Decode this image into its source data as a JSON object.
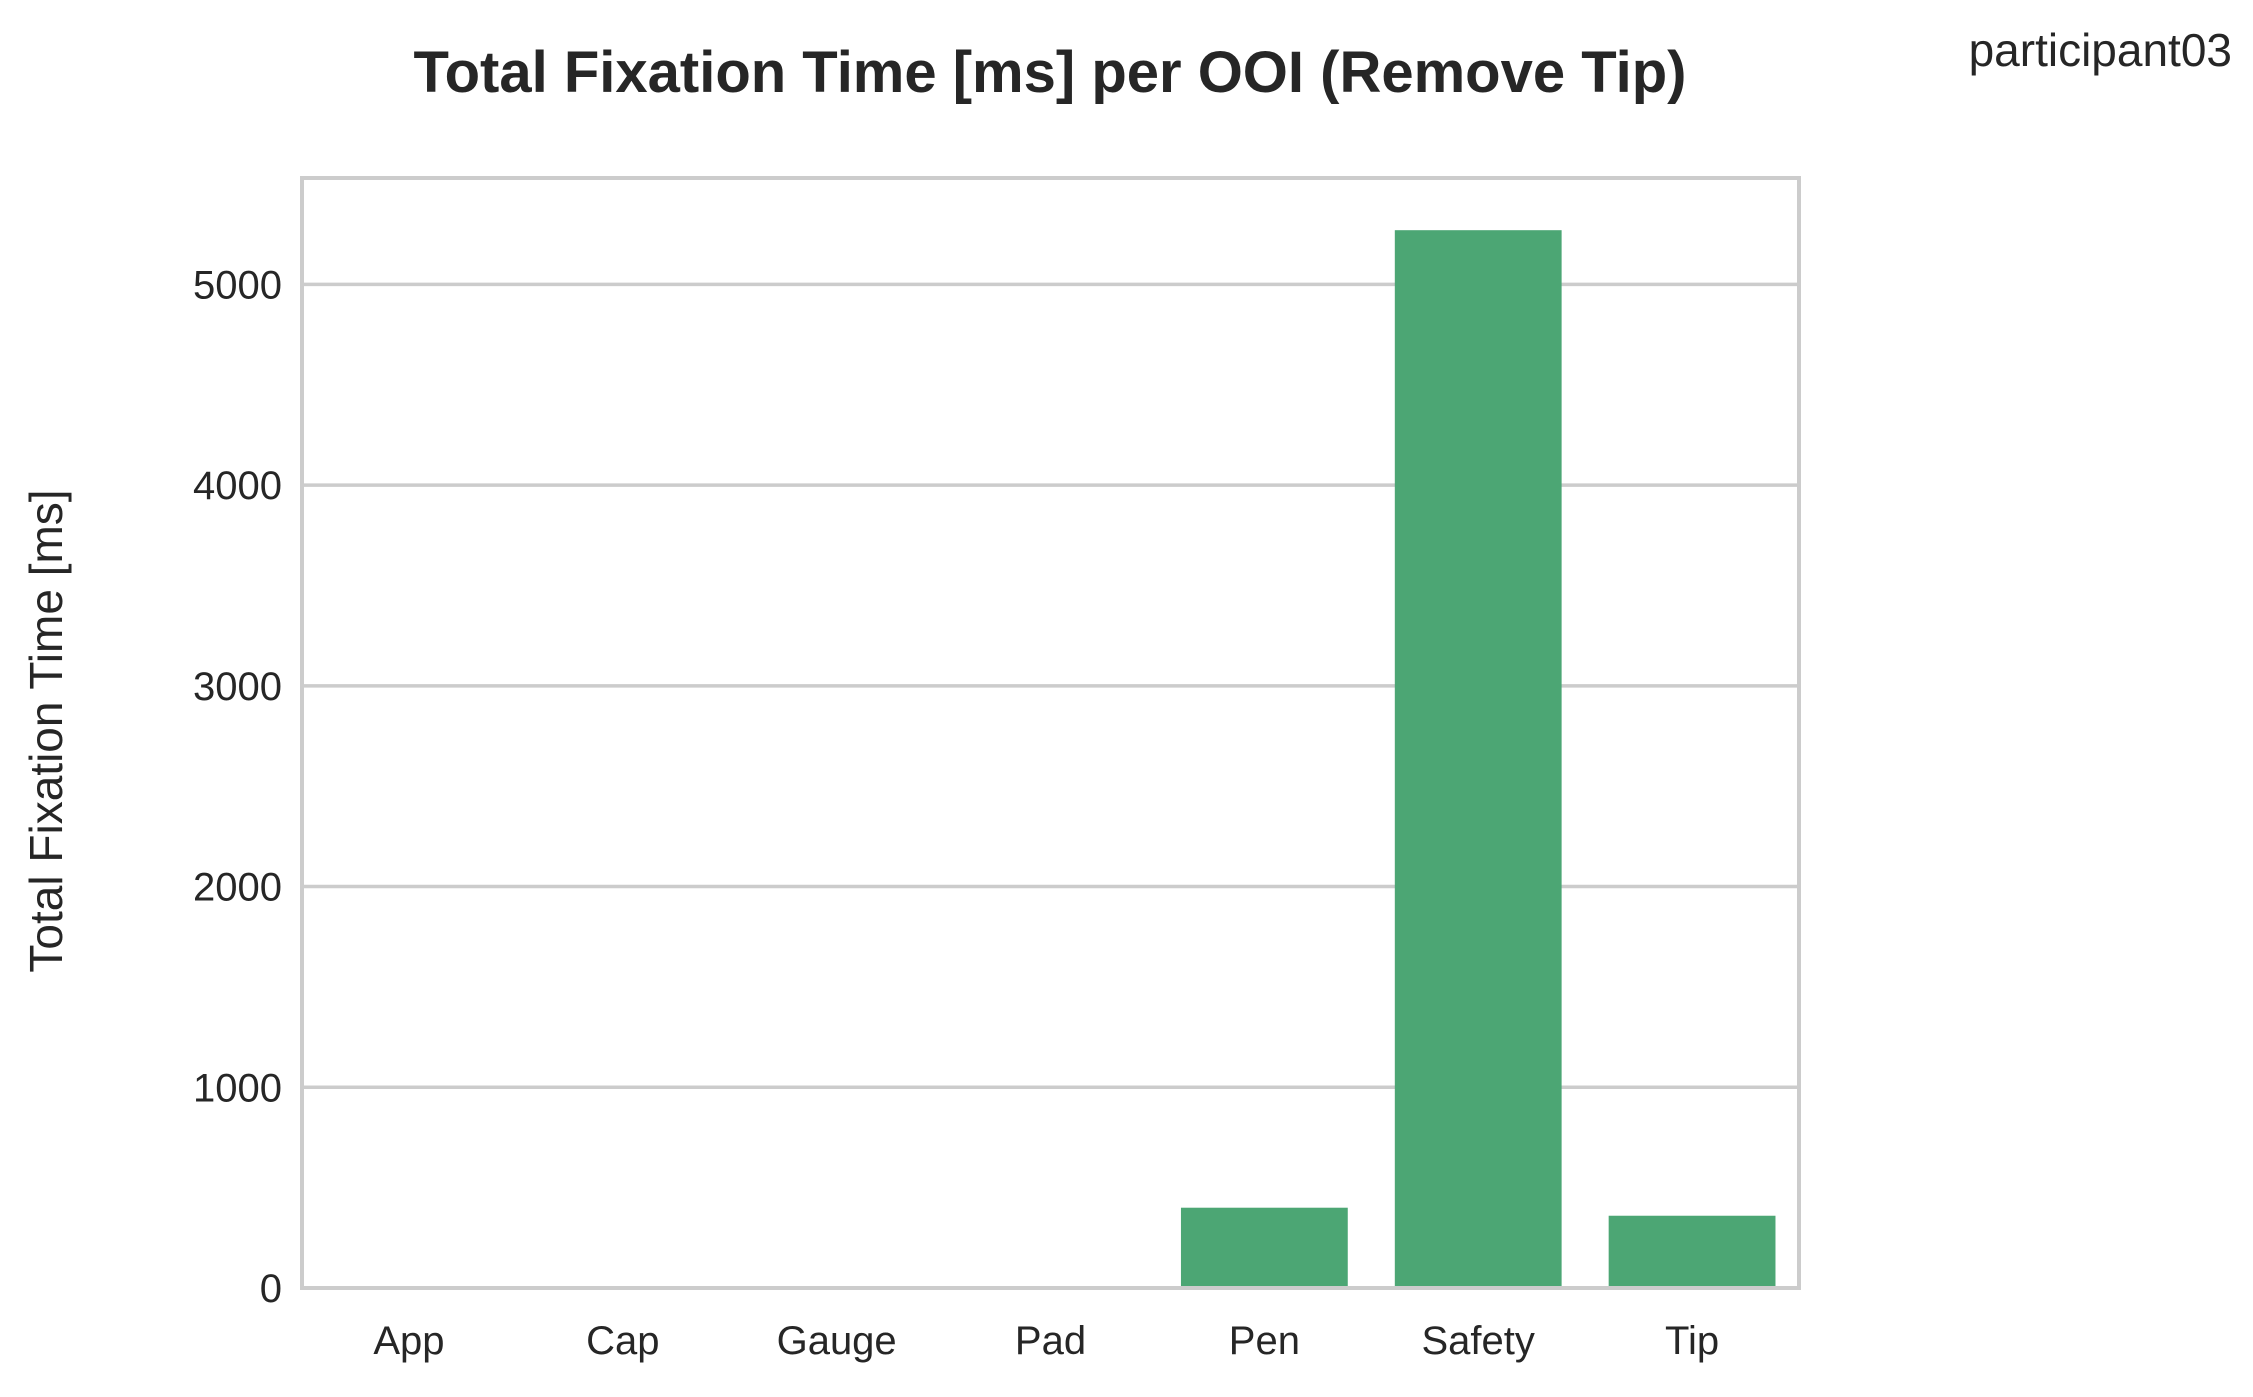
{
  "chart_data": {
    "type": "bar",
    "title": "Total Fixation Time [ms] per OOI (Remove Tip)",
    "corner_label": "participant03",
    "xlabel": "",
    "ylabel": "Total Fixation Time [ms]",
    "categories": [
      "App",
      "Cap",
      "Gauge",
      "Pad",
      "Pen",
      "Safety",
      "Tip"
    ],
    "values": [
      0,
      0,
      0,
      0,
      400,
      5270,
      360
    ],
    "ylim": [
      0,
      5530
    ],
    "yticks": [
      0,
      1000,
      2000,
      3000,
      4000,
      5000
    ],
    "grid": true,
    "bar_color": "#4ca674",
    "grid_color": "#cccccc",
    "text_color": "#262626"
  }
}
